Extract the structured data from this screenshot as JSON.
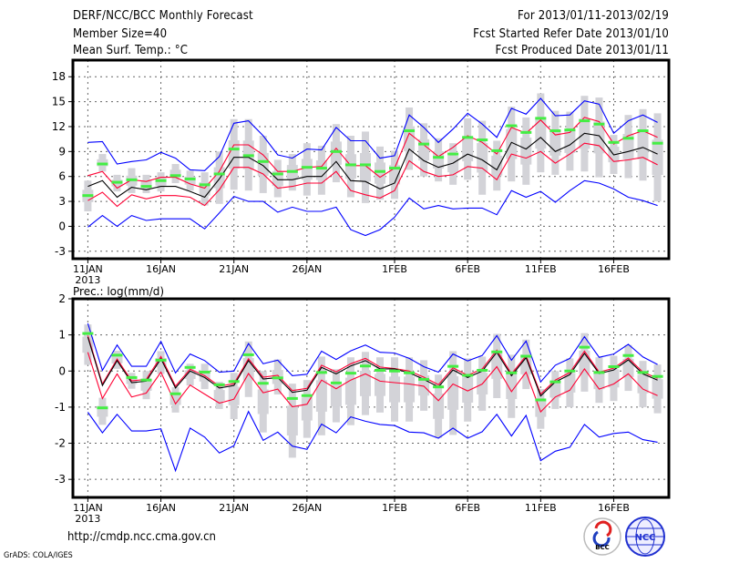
{
  "header": {
    "title": "DERF/NCC/BCC Monthly Forecast",
    "member_size": "Member Size=40",
    "variable": "Mean Surf. Temp.: °C",
    "period": "For 2013/01/11-2013/02/19",
    "start_date": "Fcst Started Refer Date 2013/01/10",
    "produced_date": "Fcst Produced Date 2013/01/11"
  },
  "footer": {
    "url": "http://cmdp.ncc.cma.gov.cn",
    "credit": "GrADS: COLA/IGES",
    "logo_bcc": "BCC",
    "logo_ncc": "NCC"
  },
  "colors": {
    "max_min": "#0000ff",
    "spread": "#ff0033",
    "mean": "#000000",
    "observed": "#44ee44",
    "range": "#d3d3d8"
  },
  "chart_data": [
    {
      "type": "line",
      "title": "Mean Surf. Temp.: °C",
      "ylabel": "",
      "ylim": [
        -3.9,
        20
      ],
      "yticks": [
        -3,
        0,
        3,
        6,
        9,
        12,
        15,
        18
      ],
      "ytick_labels": [
        "-3",
        "0",
        "3",
        "6",
        "9",
        "12",
        "15",
        "18"
      ],
      "xticks": [
        0,
        5,
        10,
        15,
        21,
        26,
        31,
        36
      ],
      "xtick_labels": [
        "11JAN",
        "16JAN",
        "21JAN",
        "26JAN",
        "1FEB",
        "6FEB",
        "11FEB",
        "16FEB"
      ],
      "year_label": "2013",
      "grid": true,
      "series": [
        {
          "name": "max",
          "color": "#0000ff",
          "values": [
            10.1,
            10.2,
            7.5,
            7.8,
            8.0,
            8.9,
            8.2,
            6.8,
            6.7,
            8.4,
            12.4,
            12.7,
            10.9,
            8.6,
            8.2,
            9.3,
            9.2,
            11.9,
            10.3,
            10.3,
            8.2,
            8.5,
            13.4,
            11.9,
            10.1,
            11.7,
            13.6,
            12.3,
            10.7,
            14.2,
            13.5,
            15.4,
            13.3,
            13.4,
            15.1,
            14.7,
            11.2,
            12.7,
            13.4,
            12.5
          ]
        },
        {
          "name": "upper",
          "color": "#ff0033",
          "values": [
            6.1,
            6.6,
            4.6,
            5.6,
            5.4,
            5.9,
            5.9,
            5.1,
            4.6,
            6.6,
            9.8,
            9.8,
            8.6,
            6.6,
            6.6,
            7.1,
            7.2,
            9.4,
            7.3,
            7.3,
            5.9,
            7.0,
            11.2,
            9.8,
            8.4,
            9.5,
            10.9,
            10.1,
            8.7,
            11.9,
            11.2,
            12.8,
            11.0,
            11.3,
            13.1,
            12.6,
            9.9,
            10.9,
            11.5,
            10.7
          ]
        },
        {
          "name": "mean",
          "color": "#000000",
          "values": [
            4.8,
            5.5,
            3.5,
            4.7,
            4.4,
            4.8,
            4.8,
            4.2,
            3.5,
            5.7,
            8.3,
            8.3,
            7.3,
            5.6,
            5.6,
            6.0,
            6.0,
            7.8,
            5.5,
            5.4,
            4.5,
            5.2,
            9.3,
            7.9,
            7.1,
            7.6,
            8.7,
            8.0,
            6.8,
            10.1,
            9.3,
            10.7,
            9.0,
            9.8,
            11.2,
            10.9,
            8.6,
            9.0,
            9.5,
            8.7
          ]
        },
        {
          "name": "lower",
          "color": "#ff0033",
          "values": [
            3.1,
            4.1,
            2.4,
            3.8,
            3.3,
            3.7,
            3.7,
            3.5,
            2.5,
            4.4,
            7.1,
            7.1,
            6.3,
            4.6,
            4.8,
            5.2,
            5.2,
            6.6,
            4.3,
            3.8,
            3.4,
            4.3,
            7.9,
            6.6,
            6.0,
            6.2,
            7.2,
            7.0,
            5.6,
            8.7,
            8.2,
            9.0,
            7.6,
            8.7,
            10.0,
            9.7,
            7.8,
            8.0,
            8.3,
            7.4
          ]
        },
        {
          "name": "min",
          "color": "#0000ff",
          "values": [
            -0.1,
            1.3,
            0.0,
            1.3,
            0.7,
            0.9,
            0.9,
            0.9,
            -0.3,
            1.6,
            3.6,
            3.0,
            3.0,
            1.7,
            2.3,
            1.8,
            1.8,
            2.3,
            -0.4,
            -1.1,
            -0.4,
            1.1,
            3.4,
            2.1,
            2.5,
            2.1,
            2.2,
            2.2,
            1.4,
            4.3,
            3.5,
            4.2,
            2.9,
            4.3,
            5.5,
            5.2,
            4.5,
            3.5,
            3.1,
            2.5
          ]
        }
      ],
      "observed": [
        3.7,
        7.5,
        5.3,
        5.6,
        4.8,
        5.5,
        6.1,
        5.7,
        5.0,
        6.3,
        9.3,
        8.5,
        7.8,
        6.3,
        6.6,
        7.1,
        7.0,
        9.0,
        7.4,
        7.4,
        6.6,
        7.0,
        11.5,
        9.9,
        8.3,
        8.7,
        10.7,
        10.4,
        9.1,
        12.1,
        11.3,
        13.0,
        11.5,
        11.6,
        12.7,
        12.3,
        10.1,
        10.6,
        11.5,
        10.0
      ],
      "range": [
        [
          1.8,
          5.5
        ],
        [
          6.6,
          8.7
        ],
        [
          4.2,
          6.2
        ],
        [
          4.0,
          7.0
        ],
        [
          4.0,
          6.2
        ],
        [
          4.2,
          6.5
        ],
        [
          5.2,
          7.5
        ],
        [
          4.3,
          6.7
        ],
        [
          2.5,
          6.5
        ],
        [
          2.7,
          9.0
        ],
        [
          4.4,
          12.9
        ],
        [
          4.3,
          12.9
        ],
        [
          4.0,
          10.9
        ],
        [
          3.5,
          8.0
        ],
        [
          4.3,
          8.7
        ],
        [
          3.7,
          10.0
        ],
        [
          3.8,
          9.7
        ],
        [
          5.3,
          12.3
        ],
        [
          3.5,
          10.9
        ],
        [
          2.8,
          11.4
        ],
        [
          3.2,
          9.6
        ],
        [
          3.3,
          9.1
        ],
        [
          6.8,
          14.3
        ],
        [
          6.0,
          12.4
        ],
        [
          5.4,
          10.6
        ],
        [
          5.0,
          10.0
        ],
        [
          5.6,
          13.0
        ],
        [
          3.8,
          12.7
        ],
        [
          4.3,
          10.3
        ],
        [
          5.4,
          14.4
        ],
        [
          5.0,
          13.1
        ],
        [
          6.5,
          16.0
        ],
        [
          6.2,
          13.9
        ],
        [
          6.7,
          13.8
        ],
        [
          6.6,
          15.7
        ],
        [
          5.9,
          15.5
        ],
        [
          6.3,
          11.0
        ],
        [
          5.8,
          13.4
        ],
        [
          5.5,
          14.1
        ],
        [
          3.0,
          13.6
        ]
      ]
    },
    {
      "type": "line",
      "title": "Prec.: log(mm/d)",
      "ylabel": "",
      "ylim": [
        -3.5,
        2
      ],
      "yticks": [
        -3,
        -2,
        -1,
        0,
        1,
        2
      ],
      "ytick_labels": [
        "-3",
        "-2",
        "-1",
        "0",
        "1",
        "2"
      ],
      "xticks": [
        0,
        5,
        10,
        15,
        21,
        26,
        31,
        36
      ],
      "xtick_labels": [
        "11JAN",
        "16JAN",
        "21JAN",
        "26JAN",
        "1FEB",
        "6FEB",
        "11FEB",
        "16FEB"
      ],
      "year_label": "2013",
      "grid": true,
      "series": [
        {
          "name": "max",
          "color": "#0000ff",
          "values": [
            1.32,
            0.02,
            0.72,
            0.13,
            0.13,
            0.82,
            -0.05,
            0.47,
            0.29,
            -0.03,
            0.0,
            0.76,
            0.2,
            0.3,
            -0.13,
            -0.09,
            0.55,
            0.32,
            0.56,
            0.72,
            0.52,
            0.5,
            0.35,
            0.12,
            -0.03,
            0.47,
            0.28,
            0.43,
            0.98,
            0.3,
            0.83,
            -0.3,
            0.16,
            0.35,
            0.95,
            0.38,
            0.47,
            0.74,
            0.39,
            0.18
          ]
        },
        {
          "name": "upper",
          "color": "#ff0033",
          "values": [
            0.98,
            -0.36,
            0.33,
            -0.27,
            -0.23,
            0.4,
            -0.42,
            0.05,
            -0.13,
            -0.42,
            -0.35,
            0.34,
            -0.17,
            -0.12,
            -0.54,
            -0.48,
            0.16,
            -0.02,
            0.2,
            0.35,
            0.11,
            0.07,
            0.0,
            -0.17,
            -0.38,
            0.09,
            -0.12,
            0.06,
            0.58,
            -0.08,
            0.42,
            -0.64,
            -0.25,
            -0.04,
            0.55,
            -0.03,
            0.08,
            0.36,
            -0.03,
            -0.2
          ]
        },
        {
          "name": "mean",
          "color": "#000000",
          "values": [
            0.94,
            -0.4,
            0.29,
            -0.32,
            -0.28,
            0.34,
            -0.47,
            0.0,
            -0.18,
            -0.47,
            -0.4,
            0.29,
            -0.22,
            -0.18,
            -0.59,
            -0.53,
            0.1,
            -0.08,
            0.14,
            0.29,
            0.06,
            0.06,
            -0.05,
            -0.23,
            -0.44,
            0.03,
            -0.18,
            0.0,
            0.52,
            -0.13,
            0.37,
            -0.69,
            -0.3,
            -0.1,
            0.49,
            -0.07,
            0.03,
            0.31,
            -0.08,
            -0.25
          ]
        },
        {
          "name": "lower",
          "color": "#ff0033",
          "values": [
            0.52,
            -0.76,
            -0.08,
            -0.72,
            -0.61,
            -0.03,
            -0.91,
            -0.39,
            -0.64,
            -0.89,
            -0.78,
            -0.07,
            -0.6,
            -0.5,
            -0.99,
            -0.92,
            -0.25,
            -0.49,
            -0.25,
            -0.08,
            -0.28,
            -0.32,
            -0.36,
            -0.42,
            -0.82,
            -0.36,
            -0.55,
            -0.36,
            0.12,
            -0.57,
            -0.03,
            -1.13,
            -0.72,
            -0.53,
            0.06,
            -0.5,
            -0.36,
            -0.08,
            -0.5,
            -0.68
          ]
        },
        {
          "name": "min",
          "color": "#0000ff",
          "values": [
            -1.14,
            -1.71,
            -1.2,
            -1.66,
            -1.66,
            -1.6,
            -2.76,
            -1.58,
            -1.83,
            -2.27,
            -2.07,
            -1.12,
            -1.92,
            -1.69,
            -2.08,
            -2.17,
            -1.47,
            -1.71,
            -1.27,
            -1.39,
            -1.48,
            -1.51,
            -1.69,
            -1.71,
            -1.86,
            -1.58,
            -1.86,
            -1.68,
            -1.2,
            -1.8,
            -1.23,
            -2.48,
            -2.22,
            -2.11,
            -1.48,
            -1.83,
            -1.73,
            -1.69,
            -1.9,
            -1.97
          ]
        }
      ],
      "observed": [
        1.04,
        -1.02,
        0.44,
        -0.18,
        -0.25,
        0.3,
        -0.63,
        0.1,
        -0.03,
        -0.38,
        -0.29,
        0.45,
        -0.34,
        -0.19,
        -0.76,
        -0.68,
        -0.04,
        -0.33,
        -0.06,
        0.14,
        0.02,
        0.0,
        -0.05,
        -0.23,
        -0.44,
        0.13,
        -0.12,
        0.02,
        0.53,
        -0.05,
        0.41,
        -0.8,
        -0.3,
        0.0,
        0.66,
        -0.04,
        0.12,
        0.43,
        -0.04,
        -0.15
      ],
      "range": [
        [
          0.17,
          1.29
        ],
        [
          -1.49,
          -0.74
        ],
        [
          0.06,
          0.56
        ],
        [
          -0.49,
          -0.05
        ],
        [
          -0.78,
          0.0
        ],
        [
          -0.08,
          0.55
        ],
        [
          -1.15,
          -0.45
        ],
        [
          -0.4,
          0.2
        ],
        [
          -0.5,
          0.2
        ],
        [
          -1.05,
          -0.3
        ],
        [
          -1.33,
          -0.05
        ],
        [
          -0.72,
          0.82
        ],
        [
          -1.7,
          0.0
        ],
        [
          -0.65,
          0.32
        ],
        [
          -2.4,
          -0.35
        ],
        [
          -1.85,
          -0.25
        ],
        [
          -1.78,
          0.4
        ],
        [
          -1.42,
          0.05
        ],
        [
          -1.5,
          0.38
        ],
        [
          -1.22,
          0.53
        ],
        [
          -1.15,
          0.38
        ],
        [
          -1.4,
          0.38
        ],
        [
          -1.4,
          0.38
        ],
        [
          -1.1,
          0.3
        ],
        [
          -1.85,
          -0.1
        ],
        [
          -1.77,
          0.55
        ],
        [
          -1.4,
          0.35
        ],
        [
          -1.1,
          0.4
        ],
        [
          -0.75,
          1.03
        ],
        [
          -1.3,
          0.45
        ],
        [
          -0.5,
          0.87
        ],
        [
          -1.6,
          -0.5
        ],
        [
          -1.05,
          0.0
        ],
        [
          -1.0,
          0.35
        ],
        [
          -0.57,
          1.05
        ],
        [
          -0.88,
          0.38
        ],
        [
          -0.83,
          0.42
        ],
        [
          -0.55,
          0.72
        ],
        [
          -1.0,
          0.28
        ],
        [
          -1.17,
          0.18
        ]
      ]
    }
  ]
}
